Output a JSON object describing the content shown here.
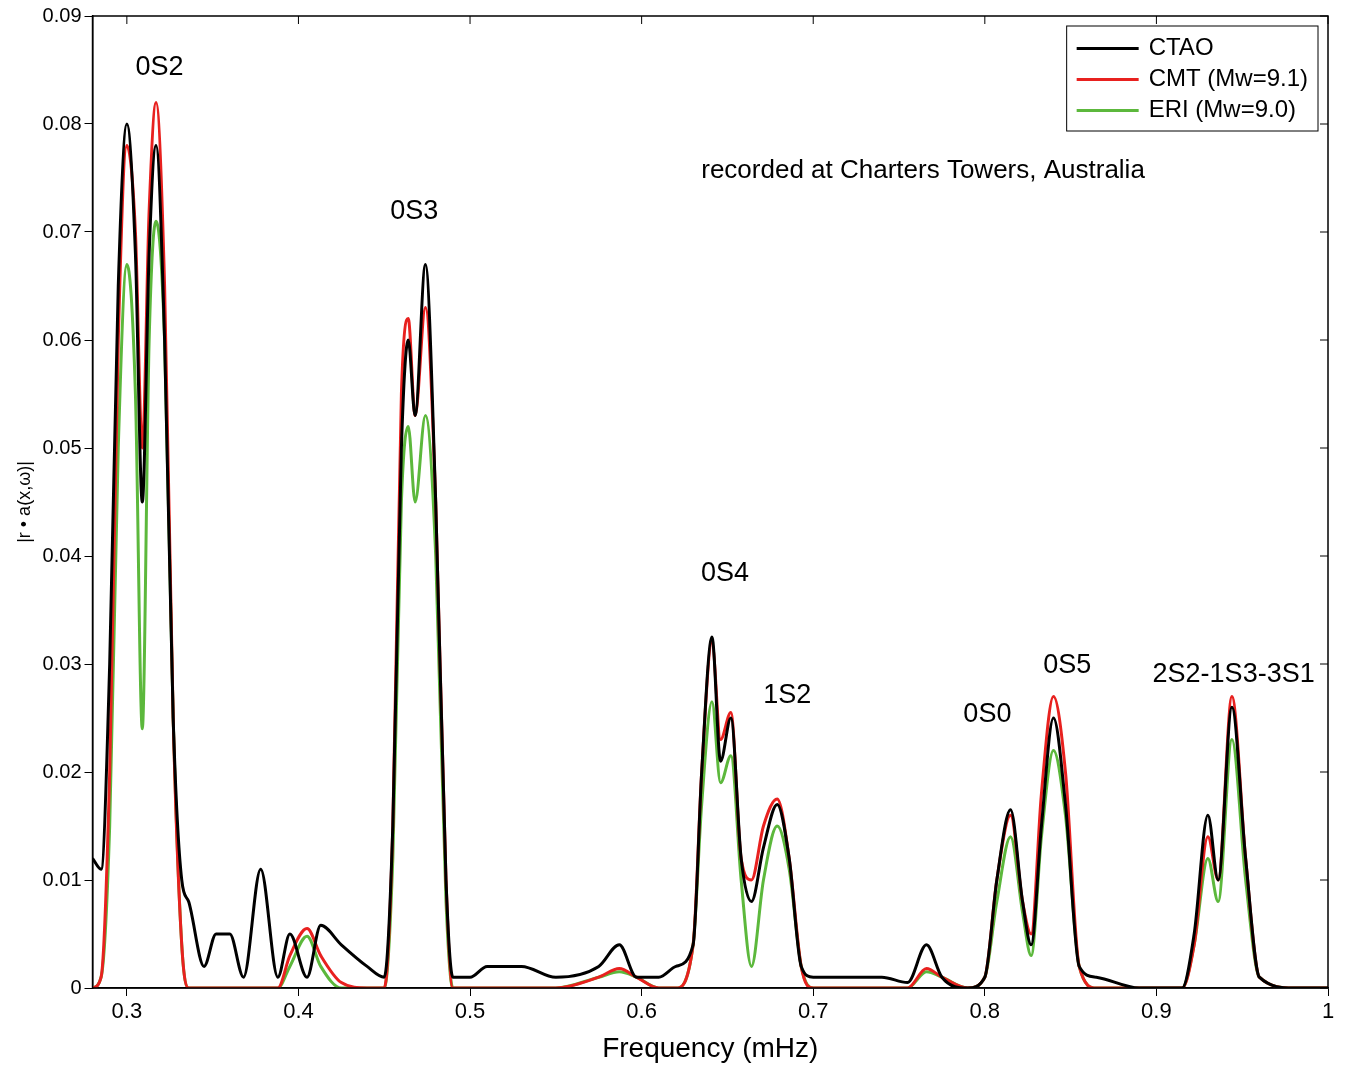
{
  "chart_data": {
    "type": "line",
    "x_label": "Frequency (mHz)",
    "y_label": "|r • a(x,ω)|",
    "x": [
      0.28,
      0.285,
      0.29,
      0.295,
      0.3,
      0.305,
      0.309,
      0.313,
      0.317,
      0.322,
      0.327,
      0.332,
      0.336,
      0.345,
      0.352,
      0.36,
      0.368,
      0.378,
      0.388,
      0.395,
      0.405,
      0.413,
      0.425,
      0.44,
      0.45,
      0.455,
      0.46,
      0.464,
      0.468,
      0.474,
      0.48,
      0.486,
      0.49,
      0.5,
      0.51,
      0.53,
      0.55,
      0.575,
      0.587,
      0.597,
      0.61,
      0.62,
      0.63,
      0.635,
      0.641,
      0.646,
      0.652,
      0.658,
      0.664,
      0.671,
      0.679,
      0.686,
      0.693,
      0.7,
      0.72,
      0.74,
      0.755,
      0.766,
      0.775,
      0.79,
      0.8,
      0.807,
      0.815,
      0.822,
      0.827,
      0.833,
      0.84,
      0.847,
      0.855,
      0.865,
      0.89,
      0.915,
      0.922,
      0.93,
      0.936,
      0.944,
      0.952,
      0.96,
      0.98,
      1.0
    ],
    "series": [
      {
        "name": "CTAO",
        "color": "#000000",
        "values": [
          0.012,
          0.011,
          0.03,
          0.065,
          0.08,
          0.068,
          0.045,
          0.068,
          0.078,
          0.06,
          0.025,
          0.01,
          0.008,
          0.002,
          0.005,
          0.005,
          0.001,
          0.011,
          0.001,
          0.005,
          0.001,
          0.0058,
          0.004,
          0.002,
          0.001,
          0.015,
          0.05,
          0.06,
          0.053,
          0.067,
          0.045,
          0.01,
          0.001,
          0.001,
          0.002,
          0.002,
          0.001,
          0.002,
          0.004,
          0.001,
          0.001,
          0.002,
          0.004,
          0.02,
          0.0325,
          0.021,
          0.025,
          0.012,
          0.008,
          0.013,
          0.017,
          0.012,
          0.002,
          0.001,
          0.001,
          0.001,
          0.0005,
          0.004,
          0.001,
          0,
          0.001,
          0.01,
          0.0165,
          0.008,
          0.004,
          0.015,
          0.025,
          0.017,
          0.002,
          0.001,
          0,
          0,
          0.005,
          0.016,
          0.01,
          0.026,
          0.012,
          0.001,
          0,
          0
        ]
      },
      {
        "name": "CMT (Mw=9.1)",
        "color": "#e8211f",
        "values": [
          0,
          0.001,
          0.02,
          0.06,
          0.078,
          0.07,
          0.05,
          0.072,
          0.082,
          0.065,
          0.025,
          0.004,
          0,
          0,
          0,
          0,
          0,
          0,
          0,
          0.003,
          0.0055,
          0.003,
          0.0005,
          0,
          0,
          0.015,
          0.055,
          0.062,
          0.053,
          0.063,
          0.045,
          0.01,
          0,
          0,
          0,
          0,
          0,
          0.001,
          0.0018,
          0.001,
          0,
          0,
          0.004,
          0.02,
          0.032,
          0.023,
          0.0255,
          0.012,
          0.01,
          0.015,
          0.0175,
          0.012,
          0.002,
          0,
          0,
          0,
          0,
          0.0018,
          0.001,
          0,
          0.001,
          0.01,
          0.016,
          0.008,
          0.005,
          0.018,
          0.027,
          0.02,
          0.002,
          0,
          0,
          0,
          0.004,
          0.014,
          0.01,
          0.027,
          0.012,
          0.001,
          0,
          0
        ]
      },
      {
        "name": "ERI (Mw=9.0)",
        "color": "#5cb83c",
        "values": [
          0,
          0.001,
          0.015,
          0.05,
          0.067,
          0.055,
          0.024,
          0.06,
          0.071,
          0.06,
          0.025,
          0.004,
          0,
          0,
          0,
          0,
          0,
          0,
          0,
          0.002,
          0.0048,
          0.002,
          0,
          0,
          0,
          0.012,
          0.045,
          0.052,
          0.045,
          0.053,
          0.04,
          0.008,
          0,
          0,
          0,
          0,
          0,
          0.001,
          0.0015,
          0.001,
          0,
          0,
          0.004,
          0.017,
          0.0265,
          0.019,
          0.0215,
          0.01,
          0.002,
          0.01,
          0.015,
          0.011,
          0.002,
          0,
          0,
          0,
          0,
          0.0015,
          0.001,
          0,
          0.001,
          0.008,
          0.014,
          0.007,
          0.003,
          0.014,
          0.022,
          0.016,
          0.002,
          0,
          0,
          0,
          0.004,
          0.012,
          0.008,
          0.023,
          0.01,
          0.001,
          0,
          0
        ]
      }
    ],
    "xlim": [
      0.28,
      1
    ],
    "ylim": [
      0,
      0.09
    ],
    "xticks": [
      0.3,
      0.4,
      0.5,
      0.6,
      0.7,
      0.8,
      0.9,
      1
    ],
    "yticks": [
      0,
      0.01,
      0.02,
      0.03,
      0.04,
      0.05,
      0.06,
      0.07,
      0.08,
      0.09
    ],
    "grid": false,
    "legend": "upper right",
    "annotations": [
      {
        "text": "0S2",
        "x": 0.319,
        "y": 0.0852
      },
      {
        "text": "0S3",
        "x": 0.4675,
        "y": 0.0719
      },
      {
        "text": "0S4",
        "x": 0.6486,
        "y": 0.0384
      },
      {
        "text": "1S2",
        "x": 0.6849,
        "y": 0.0271
      },
      {
        "text": "0S0",
        "x": 0.8015,
        "y": 0.0253
      },
      {
        "text": "0S5",
        "x": 0.848,
        "y": 0.0299
      },
      {
        "text": "2S2-1S3-3S1",
        "x": 0.945,
        "y": 0.029
      },
      {
        "text": "recorded at Charters Towers, Australia",
        "x": 0.764,
        "y": 0.0757
      }
    ]
  }
}
